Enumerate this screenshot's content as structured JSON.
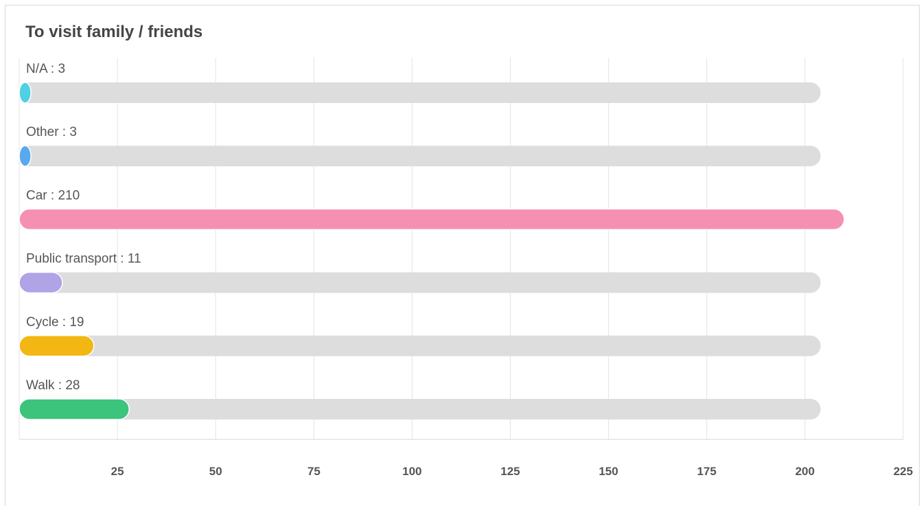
{
  "chart_data": {
    "type": "bar",
    "orientation": "horizontal",
    "title": "To visit family / friends",
    "categories": [
      "N/A",
      "Other",
      "Car",
      "Public transport",
      "Cycle",
      "Walk"
    ],
    "values": [
      3,
      3,
      210,
      11,
      19,
      28
    ],
    "colors": [
      "#4fd1e3",
      "#5aa9ee",
      "#f590b2",
      "#b0a4e6",
      "#f2b712",
      "#3cc47c"
    ],
    "track_color": "#dddddd",
    "track_max": 204,
    "xlim": [
      0,
      225
    ],
    "x_ticks": [
      25,
      50,
      75,
      100,
      125,
      150,
      175,
      200,
      225
    ],
    "grid": true,
    "legend": "none",
    "label_separator": " : "
  }
}
